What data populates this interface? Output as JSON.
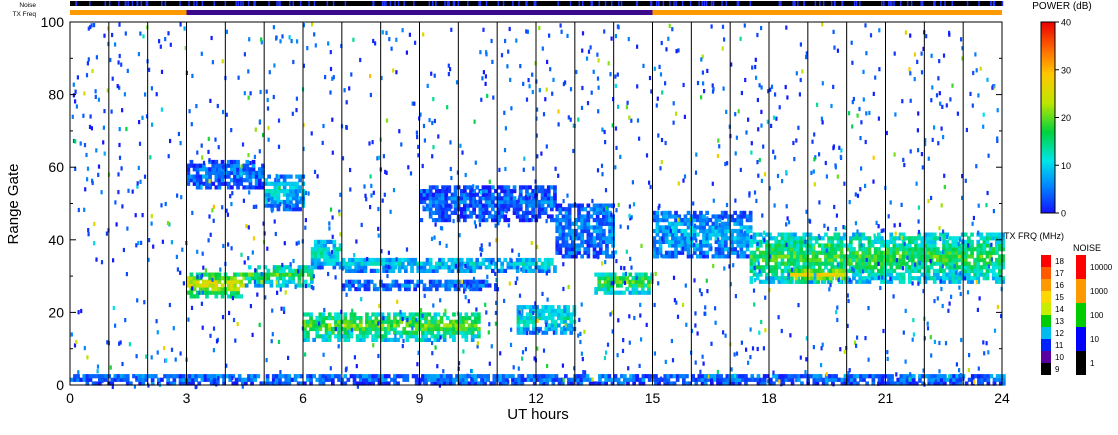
{
  "chart_data": {
    "type": "heatmap",
    "title": "",
    "top_bars": {
      "noise_label": "Noise",
      "txfreq_label": "TX Freq"
    },
    "xlabel": "UT hours",
    "ylabel": "Range Gate",
    "xlim": [
      0,
      24
    ],
    "ylim": [
      0,
      100
    ],
    "x_ticks": [
      "0",
      "3",
      "6",
      "9",
      "12",
      "15",
      "18",
      "21",
      "24"
    ],
    "x_tick_values": [
      0,
      3,
      6,
      9,
      12,
      15,
      18,
      21,
      24
    ],
    "y_ticks": [
      "0",
      "20",
      "40",
      "60",
      "80",
      "100"
    ],
    "y_tick_values": [
      0,
      20,
      40,
      60,
      80,
      100
    ],
    "scan_boundaries_hours": [
      1,
      2,
      3,
      4,
      5,
      6,
      7,
      8,
      9,
      10,
      11,
      12,
      13,
      14,
      15,
      16,
      17,
      18,
      19,
      20,
      21,
      22,
      23
    ],
    "tx_freq_segments": [
      {
        "start": 0,
        "end": 3,
        "color": "#ff9900"
      },
      {
        "start": 3,
        "end": 15,
        "color": "#3b0a8c"
      },
      {
        "start": 15,
        "end": 24,
        "color": "#ff9900"
      }
    ],
    "echo_bands": [
      {
        "t0": 3.0,
        "t1": 4.5,
        "g0": 24,
        "g1": 31,
        "power": 26
      },
      {
        "t0": 4.5,
        "t1": 6.2,
        "g0": 27,
        "g1": 33,
        "power": 18
      },
      {
        "t0": 6.2,
        "t1": 7.0,
        "g0": 32,
        "g1": 40,
        "power": 12
      },
      {
        "t0": 5.0,
        "t1": 6.0,
        "g0": 48,
        "g1": 58,
        "power": 10
      },
      {
        "t0": 3.0,
        "t1": 5.0,
        "g0": 54,
        "g1": 62,
        "power": 5
      },
      {
        "t0": 6.0,
        "t1": 10.5,
        "g0": 12,
        "g1": 20,
        "power": 20
      },
      {
        "t0": 7.0,
        "t1": 12.5,
        "g0": 31,
        "g1": 35,
        "power": 10
      },
      {
        "t0": 7.0,
        "t1": 11.0,
        "g0": 26,
        "g1": 29,
        "power": 5
      },
      {
        "t0": 9.0,
        "t1": 12.5,
        "g0": 45,
        "g1": 55,
        "power": 4
      },
      {
        "t0": 11.5,
        "t1": 13.0,
        "g0": 14,
        "g1": 22,
        "power": 12
      },
      {
        "t0": 12.5,
        "t1": 14.0,
        "g0": 35,
        "g1": 50,
        "power": 6
      },
      {
        "t0": 13.5,
        "t1": 15.0,
        "g0": 25,
        "g1": 31,
        "power": 20
      },
      {
        "t0": 15.0,
        "t1": 17.5,
        "g0": 35,
        "g1": 48,
        "power": 8
      },
      {
        "t0": 17.5,
        "t1": 24.0,
        "g0": 28,
        "g1": 42,
        "power": 18
      },
      {
        "t0": 18.5,
        "t1": 20.0,
        "g0": 28,
        "g1": 32,
        "power": 26
      },
      {
        "t0": 0.0,
        "t1": 24.0,
        "g0": 0,
        "g1": 3,
        "power": 5
      }
    ],
    "colorbars": {
      "power": {
        "label": "POWER (dB)",
        "ticks": [
          "40",
          "30",
          "20",
          "10",
          "0"
        ],
        "tick_values": [
          40,
          30,
          20,
          10,
          0
        ],
        "range": [
          0,
          40
        ]
      },
      "tx_freq": {
        "label": "TX FRQ (MHz)",
        "ticks": [
          "18",
          "17",
          "16",
          "15",
          "14",
          "13",
          "12",
          "11",
          "10",
          "9"
        ],
        "colors": [
          "#ff0000",
          "#ff5a00",
          "#ff9900",
          "#ffd700",
          "#c7ee00",
          "#00cc00",
          "#00bbee",
          "#0022ff",
          "#5a00a0",
          "#000000"
        ]
      },
      "noise": {
        "label": "NOISE",
        "ticks": [
          "10000",
          "1000",
          "100",
          "10",
          "1"
        ],
        "colors": [
          "#ff0000",
          "#ff9900",
          "#00cc00",
          "#0000ff",
          "#000000"
        ]
      }
    },
    "grid": false
  }
}
